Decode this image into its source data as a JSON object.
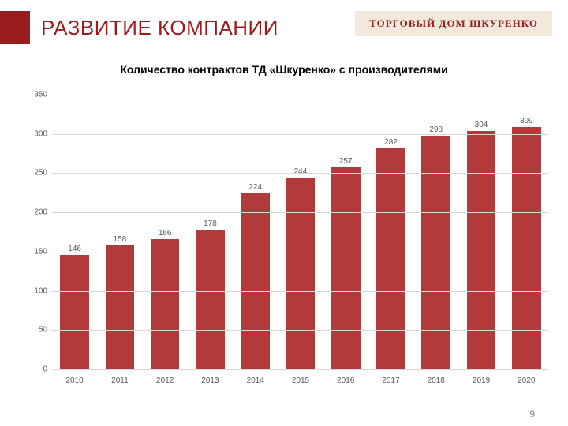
{
  "header": {
    "title": "РАЗВИТИЕ КОМПАНИИ",
    "brand": "ТОРГОВЫЙ ДОМ ШКУРЕНКО"
  },
  "chart": {
    "type": "bar",
    "title": "Количество контрактов ТД «Шкуренко» с производителями",
    "categories": [
      "2010",
      "2011",
      "2012",
      "2013",
      "2014",
      "2015",
      "2016",
      "2017",
      "2018",
      "2019",
      "2020"
    ],
    "values": [
      146,
      158,
      166,
      178,
      224,
      244,
      257,
      282,
      298,
      304,
      309
    ],
    "bar_color": "#b23a3a",
    "ylim": [
      0,
      350
    ],
    "ytick_step": 50,
    "grid_color": "#d9d9d9",
    "tick_color": "#595959",
    "tick_fontsize": 10,
    "value_label_fontsize": 10,
    "bar_width": 0.64,
    "background_color": "#ffffff",
    "title_fontsize": 14,
    "title_weight": 700
  },
  "page_number": "9",
  "colors": {
    "accent": "#9a1d1d",
    "brand_bg": "#e9d6c0"
  }
}
